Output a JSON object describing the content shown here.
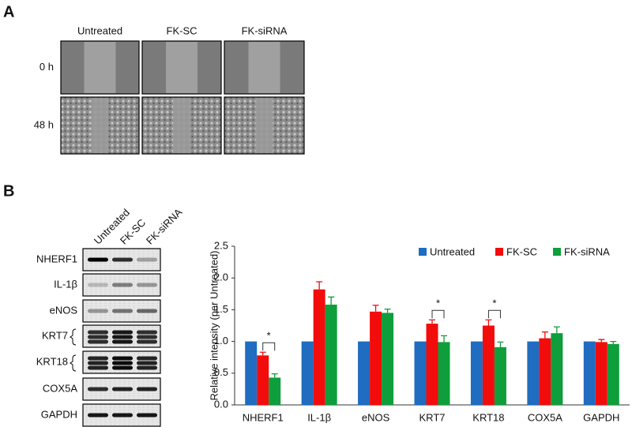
{
  "panel_a": {
    "label": "A",
    "columns": [
      "Untreated",
      "FK-SC",
      "FK-siRNA"
    ],
    "rows": [
      "0 h",
      "48 h"
    ]
  },
  "panel_b": {
    "label": "B",
    "blot_columns": [
      "Untreated",
      "FK-SC",
      "FK-siRNA"
    ],
    "blot_rows": [
      "NHERF1",
      "IL-1β",
      "eNOS",
      "KRT7",
      "KRT18",
      "COX5A",
      "GAPDH"
    ]
  },
  "chart_data": {
    "type": "bar",
    "y_label": "Relative intensity (per Untreated)",
    "categories": [
      "NHERF1",
      "IL-1β",
      "eNOS",
      "KRT7",
      "KRT18",
      "COX5A",
      "GAPDH"
    ],
    "series": [
      {
        "name": "Untreated",
        "color": "#1f6cc0",
        "values": [
          1.0,
          1.0,
          1.0,
          1.0,
          1.0,
          1.0,
          1.0
        ]
      },
      {
        "name": "FK-SC",
        "color": "#f20c0c",
        "values": [
          0.78,
          1.82,
          1.47,
          1.28,
          1.25,
          1.05,
          0.99
        ],
        "errors": [
          0.05,
          0.12,
          0.1,
          0.06,
          0.09,
          0.1,
          0.04
        ]
      },
      {
        "name": "FK-siRNA",
        "color": "#0e9e3c",
        "values": [
          0.43,
          1.58,
          1.45,
          0.99,
          0.91,
          1.13,
          0.96
        ],
        "errors": [
          0.06,
          0.12,
          0.06,
          0.1,
          0.08,
          0.1,
          0.04
        ]
      }
    ],
    "significance": [
      "*",
      null,
      null,
      "*",
      "*",
      null,
      null
    ],
    "ylim": [
      0,
      2.5
    ],
    "yticks": [
      {
        "value": 0,
        "label": "0.0"
      },
      0.5,
      {
        "value": 1,
        "label": "1.0"
      },
      1.5,
      {
        "value": 2,
        "label": "2.0"
      },
      2.5
    ],
    "legend": "top-right"
  }
}
